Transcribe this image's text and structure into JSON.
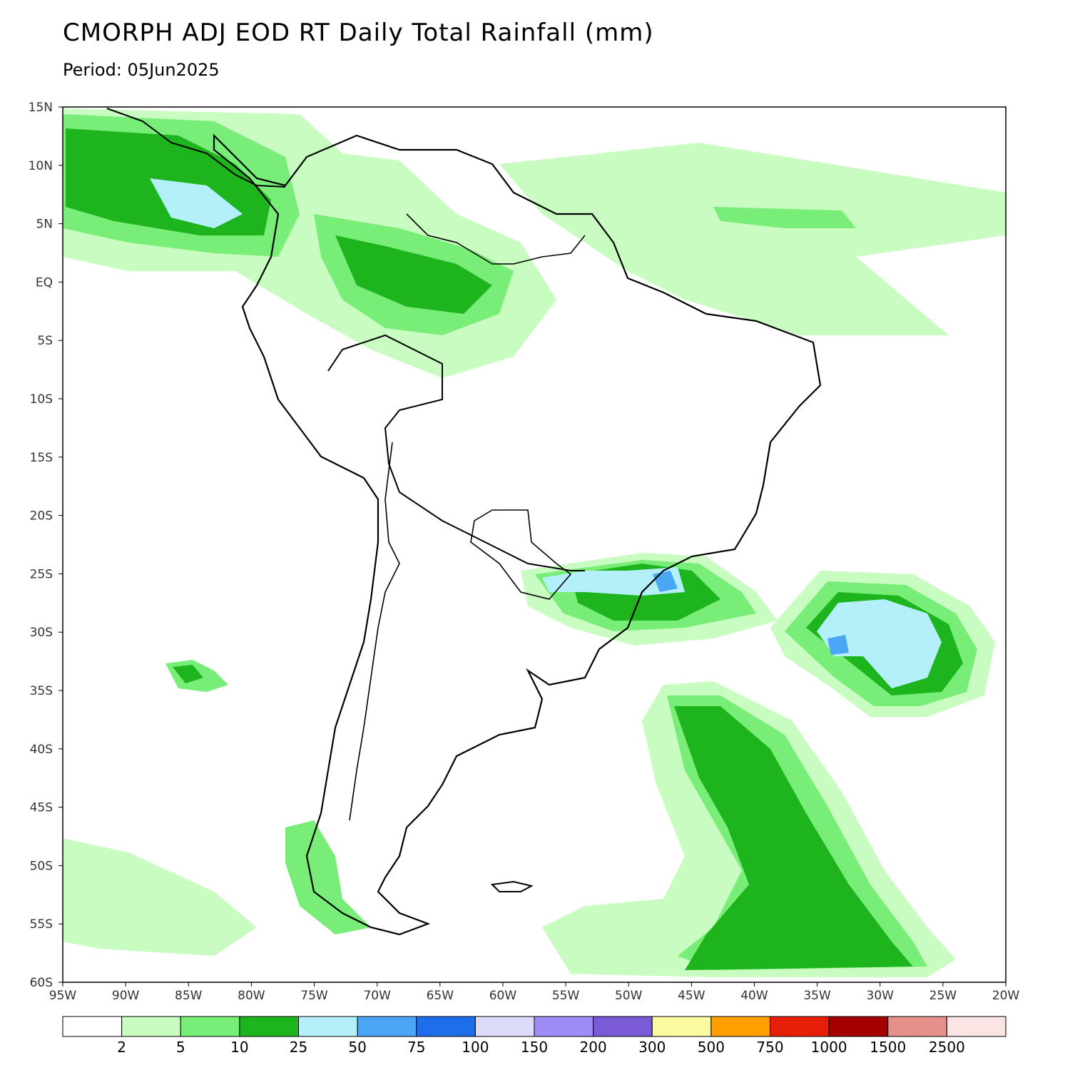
{
  "title": "CMORPH ADJ EOD RT Daily Total Rainfall (mm)",
  "subtitle": "Period: 05Jun2025",
  "map": {
    "lat_range": [
      -60,
      15
    ],
    "lon_range": [
      -95,
      -20
    ],
    "lat_labels": [
      "15N",
      "10N",
      "5N",
      "EQ",
      "5S",
      "10S",
      "15S",
      "20S",
      "25S",
      "30S",
      "35S",
      "40S",
      "45S",
      "50S",
      "55S",
      "60S"
    ],
    "lon_labels": [
      "95W",
      "90W",
      "85W",
      "80W",
      "75W",
      "70W",
      "65W",
      "60W",
      "55W",
      "50W",
      "45W",
      "40W",
      "35W",
      "30W",
      "25W",
      "20W"
    ]
  },
  "colorbar": {
    "colors": [
      "#ffffff",
      "#c8fcc0",
      "#78ee78",
      "#1eb41e",
      "#b4f0fa",
      "#4ba6f5",
      "#1e6eeb",
      "#dcdcfa",
      "#a08cf5",
      "#7a5ad7",
      "#fafaa0",
      "#ffa000",
      "#e61e0a",
      "#a50000",
      "#e6908c",
      "#fae4e4"
    ],
    "labels": [
      "2",
      "5",
      "10",
      "25",
      "50",
      "75",
      "100",
      "150",
      "200",
      "300",
      "500",
      "750",
      "1000",
      "1500",
      "2500"
    ]
  }
}
